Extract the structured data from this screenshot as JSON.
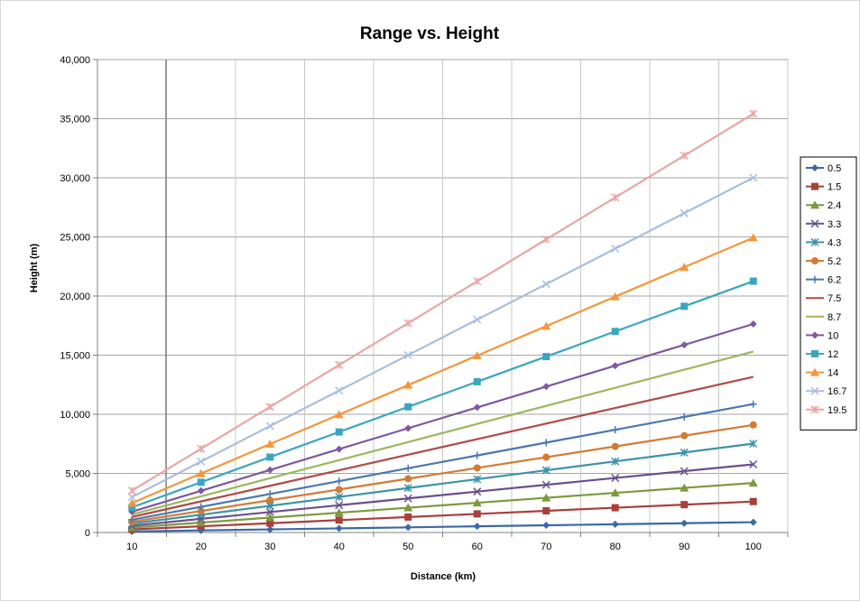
{
  "chart_data": {
    "type": "line",
    "title": "Range vs. Height",
    "xlabel": "Distance (km)",
    "ylabel": "Height (m)",
    "x": [
      10,
      20,
      30,
      40,
      50,
      60,
      70,
      80,
      90,
      100
    ],
    "x_tick_labels": [
      "10",
      "20",
      "30",
      "40",
      "50",
      "60",
      "70",
      "80",
      "90",
      "100"
    ],
    "y_tick_labels": [
      "0",
      "5,000",
      "10,000",
      "15,000",
      "20,000",
      "25,000",
      "30,000",
      "35,000",
      "40,000"
    ],
    "ylim": [
      0,
      40000
    ],
    "grid": true,
    "legend_position": "right",
    "series": [
      {
        "name": "0.5",
        "color": "#3b68a8",
        "marker": "diamond",
        "values": [
          87,
          175,
          262,
          349,
          436,
          524,
          611,
          698,
          785,
          873
        ]
      },
      {
        "name": "1.5",
        "color": "#a8403c",
        "marker": "square",
        "values": [
          262,
          524,
          785,
          1047,
          1309,
          1571,
          1833,
          2094,
          2356,
          2618
        ]
      },
      {
        "name": "2.4",
        "color": "#7b9a3b",
        "marker": "triangle",
        "values": [
          419,
          838,
          1257,
          1676,
          2095,
          2514,
          2933,
          3352,
          3771,
          4190
        ]
      },
      {
        "name": "3.3",
        "color": "#6b4f8d",
        "marker": "x",
        "values": [
          577,
          1153,
          1730,
          2306,
          2883,
          3459,
          4036,
          4612,
          5189,
          5765
        ]
      },
      {
        "name": "4.3",
        "color": "#3b93a9",
        "marker": "star",
        "values": [
          752,
          1504,
          2255,
          3007,
          3759,
          4511,
          5263,
          6014,
          6766,
          7518
        ]
      },
      {
        "name": "5.2",
        "color": "#d47a33",
        "marker": "circle",
        "values": [
          910,
          1820,
          2730,
          3640,
          4550,
          5460,
          6370,
          7280,
          8190,
          9100
        ]
      },
      {
        "name": "6.2",
        "color": "#4a78b0",
        "marker": "plus",
        "values": [
          1086,
          2173,
          3259,
          4345,
          5432,
          6518,
          7604,
          8691,
          9777,
          10863
        ]
      },
      {
        "name": "7.5",
        "color": "#b04a46",
        "marker": "none",
        "values": [
          1317,
          2633,
          3950,
          5266,
          6583,
          7899,
          9216,
          10532,
          11849,
          13165
        ]
      },
      {
        "name": "8.7",
        "color": "#9ab85a",
        "marker": "none",
        "values": [
          1530,
          3060,
          4590,
          6120,
          7650,
          9180,
          10710,
          12240,
          13770,
          15300
        ]
      },
      {
        "name": "10",
        "color": "#7e58a0",
        "marker": "diamond",
        "values": [
          1763,
          3527,
          5290,
          7053,
          8817,
          10580,
          12343,
          14106,
          15870,
          17633
        ]
      },
      {
        "name": "12",
        "color": "#3ba5c0",
        "marker": "square",
        "values": [
          2126,
          4251,
          6377,
          8502,
          10628,
          12753,
          14879,
          17004,
          19130,
          21256
        ]
      },
      {
        "name": "14",
        "color": "#f5963c",
        "marker": "triangle",
        "values": [
          2493,
          4987,
          7480,
          9973,
          12467,
          14960,
          17453,
          19947,
          22440,
          24933
        ]
      },
      {
        "name": "16.7",
        "color": "#a8bee0",
        "marker": "x",
        "values": [
          3001,
          6002,
          9003,
          12004,
          15005,
          18006,
          21007,
          24008,
          27009,
          30010
        ]
      },
      {
        "name": "19.5",
        "color": "#e8a6a4",
        "marker": "star",
        "values": [
          3541,
          7083,
          10624,
          14166,
          17707,
          21249,
          24790,
          28332,
          31873,
          35415
        ]
      }
    ]
  }
}
